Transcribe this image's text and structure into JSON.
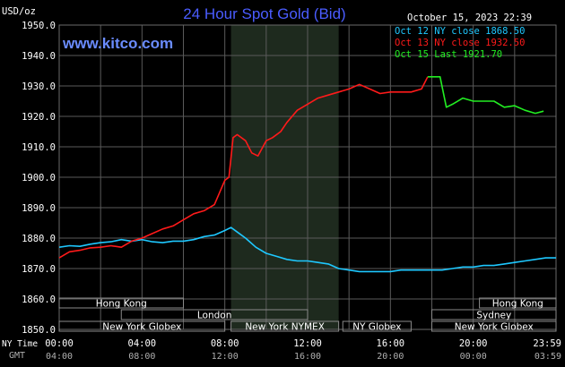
{
  "header": {
    "unit_label": "USD/oz",
    "title": "24 Hour Spot Gold (Bid)",
    "date": "October 15, 2023 22:39",
    "site": "www.kitco.com"
  },
  "legend": [
    {
      "label": "Oct 12 NY close 1868.50",
      "color": "#1ec8ff"
    },
    {
      "label": "Oct 13 NY close 1932.50",
      "color": "#ff1a1a"
    },
    {
      "label": "Oct 15 Last 1921.70",
      "color": "#22ee22"
    }
  ],
  "time_axis": {
    "row1_label": "NY Time",
    "row2_label": "GMT",
    "ny_ticks": [
      "00:00",
      "04:00",
      "08:00",
      "12:00",
      "16:00",
      "20:00",
      "23:59"
    ],
    "gmt_ticks": [
      "04:00",
      "08:00",
      "12:00",
      "16:00",
      "20:00",
      "00:00",
      "03:59"
    ]
  },
  "sessions": [
    {
      "label": "Hong Kong",
      "row": 0,
      "start": 0.0,
      "end": 6.0
    },
    {
      "label": "London",
      "row": 1,
      "start": 3.0,
      "end": 12.0
    },
    {
      "label": "New York Globex",
      "row": 2,
      "start": 0.0,
      "end": 8.0
    },
    {
      "label": "New York NYMEX",
      "row": 2,
      "start": 8.3,
      "end": 13.5
    },
    {
      "label": "NY Globex",
      "row": 2,
      "start": 13.7,
      "end": 17.0
    },
    {
      "label": "Hong Kong",
      "row": 0,
      "start": 20.3,
      "end": 24.0
    },
    {
      "label": "Sydney",
      "row": 1,
      "start": 18.0,
      "end": 24.0
    },
    {
      "label": "New York Globex",
      "row": 2,
      "start": 18.0,
      "end": 24.0
    }
  ],
  "colors": {
    "background": "#000000",
    "grid": "#5a5a5a",
    "shade": "#1e2a1e",
    "prev_close_line": "#1ec8ff",
    "last_close_line": "#ff1a1a",
    "current_line": "#22ee22"
  },
  "chart_data": {
    "type": "line",
    "title": "24 Hour Spot Gold (Bid)",
    "ylabel": "USD/oz",
    "ylim": [
      1850,
      1950
    ],
    "yticks": [
      1850,
      1860,
      1870,
      1880,
      1890,
      1900,
      1910,
      1920,
      1930,
      1940,
      1950
    ],
    "xlim": [
      0,
      24
    ],
    "shaded_range_hours": [
      8.3,
      13.5
    ],
    "grid": true,
    "series": [
      {
        "name": "Oct 12 NY close 1868.50",
        "color": "#1ec8ff",
        "points": [
          [
            0,
            1877
          ],
          [
            0.5,
            1877.5
          ],
          [
            1,
            1877.3
          ],
          [
            1.5,
            1878
          ],
          [
            2,
            1878.5
          ],
          [
            2.5,
            1878.8
          ],
          [
            3,
            1879.5
          ],
          [
            3.5,
            1879
          ],
          [
            4,
            1879.5
          ],
          [
            4.5,
            1878.8
          ],
          [
            5,
            1878.5
          ],
          [
            5.5,
            1879
          ],
          [
            6,
            1879
          ],
          [
            6.5,
            1879.5
          ],
          [
            7,
            1880.5
          ],
          [
            7.5,
            1881
          ],
          [
            8,
            1882.5
          ],
          [
            8.3,
            1883.5
          ],
          [
            8.6,
            1882
          ],
          [
            9,
            1880
          ],
          [
            9.5,
            1877
          ],
          [
            10,
            1875
          ],
          [
            10.5,
            1874
          ],
          [
            11,
            1873
          ],
          [
            11.5,
            1872.5
          ],
          [
            12,
            1872.5
          ],
          [
            12.5,
            1872
          ],
          [
            13,
            1871.5
          ],
          [
            13.5,
            1870
          ],
          [
            14,
            1869.5
          ],
          [
            14.5,
            1869
          ],
          [
            15,
            1869
          ],
          [
            15.5,
            1869
          ],
          [
            16,
            1869
          ],
          [
            16.5,
            1869.5
          ],
          [
            17,
            1869.5
          ],
          [
            17.5,
            1869.5
          ],
          [
            18,
            1869.5
          ],
          [
            18.5,
            1869.5
          ],
          [
            19,
            1870
          ],
          [
            19.5,
            1870.5
          ],
          [
            20,
            1870.5
          ],
          [
            20.5,
            1871
          ],
          [
            21,
            1871
          ],
          [
            21.5,
            1871.5
          ],
          [
            22,
            1872
          ],
          [
            22.5,
            1872.5
          ],
          [
            23,
            1873
          ],
          [
            23.5,
            1873.5
          ],
          [
            24,
            1873.5
          ]
        ]
      },
      {
        "name": "Oct 13 NY close 1932.50",
        "color": "#ff1a1a",
        "points": [
          [
            0,
            1873.5
          ],
          [
            0.5,
            1875.5
          ],
          [
            1,
            1876
          ],
          [
            1.5,
            1876.8
          ],
          [
            2,
            1877
          ],
          [
            2.5,
            1877.5
          ],
          [
            3,
            1877
          ],
          [
            3.5,
            1879
          ],
          [
            4,
            1880
          ],
          [
            4.5,
            1881.5
          ],
          [
            5,
            1883
          ],
          [
            5.5,
            1884
          ],
          [
            6,
            1886
          ],
          [
            6.5,
            1888
          ],
          [
            7,
            1889
          ],
          [
            7.5,
            1891
          ],
          [
            8,
            1899
          ],
          [
            8.2,
            1900
          ],
          [
            8.4,
            1913
          ],
          [
            8.6,
            1914
          ],
          [
            9,
            1912
          ],
          [
            9.3,
            1908
          ],
          [
            9.6,
            1907
          ],
          [
            10,
            1912
          ],
          [
            10.3,
            1913
          ],
          [
            10.7,
            1915
          ],
          [
            11,
            1918
          ],
          [
            11.5,
            1922
          ],
          [
            12,
            1924
          ],
          [
            12.5,
            1926
          ],
          [
            13,
            1927
          ],
          [
            13.5,
            1928
          ],
          [
            14,
            1929
          ],
          [
            14.5,
            1930.5
          ],
          [
            15,
            1929
          ],
          [
            15.5,
            1927.5
          ],
          [
            16,
            1928
          ],
          [
            16.5,
            1928
          ],
          [
            17,
            1928
          ],
          [
            17.5,
            1929
          ],
          [
            17.8,
            1933
          ]
        ]
      },
      {
        "name": "Oct 15 Last 1921.70",
        "color": "#22ee22",
        "points": [
          [
            17.8,
            1933
          ],
          [
            18.4,
            1933
          ],
          [
            18.7,
            1923
          ],
          [
            19,
            1924
          ],
          [
            19.5,
            1926
          ],
          [
            20,
            1925
          ],
          [
            20.5,
            1925
          ],
          [
            21,
            1925
          ],
          [
            21.5,
            1923
          ],
          [
            22,
            1923.5
          ],
          [
            22.5,
            1922
          ],
          [
            23,
            1921
          ],
          [
            23.4,
            1921.7
          ]
        ]
      }
    ]
  }
}
